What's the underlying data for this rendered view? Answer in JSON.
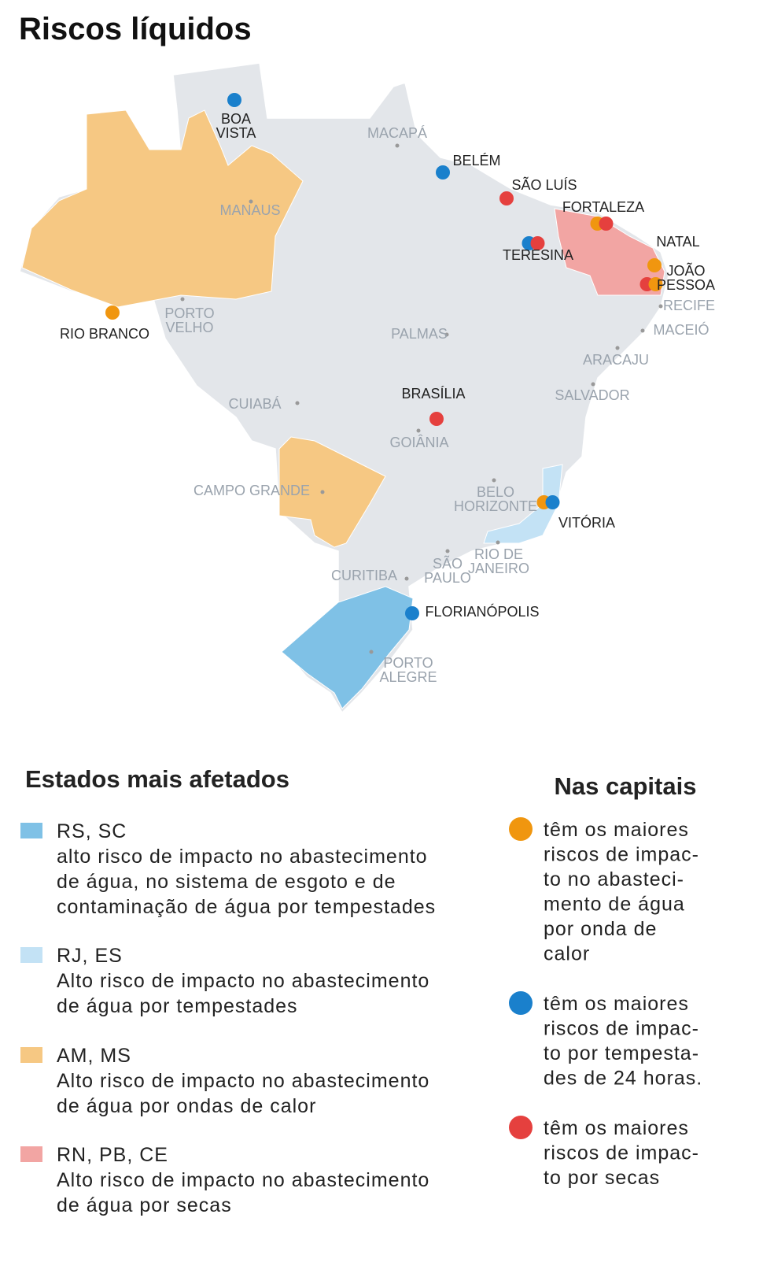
{
  "title": "Riscos líquidos",
  "cities": [
    {
      "lines": [
        "BOA",
        "VISTA"
      ],
      "affected": true,
      "dots": [
        "#1a80cc"
      ]
    },
    {
      "lines": [
        "MACAPÁ"
      ],
      "affected": false,
      "dots": []
    },
    {
      "lines": [
        "BELÉM"
      ],
      "affected": true,
      "dots": [
        "#1a80cc"
      ]
    },
    {
      "lines": [
        "SÃO LUÍS"
      ],
      "affected": true,
      "dots": [
        "#e5403e"
      ]
    },
    {
      "lines": [
        "FORTALEZA"
      ],
      "affected": true,
      "dots": [
        "#f0960f",
        "#e5403e"
      ]
    },
    {
      "lines": [
        "NATAL"
      ],
      "affected": true,
      "dots": [
        "#f0960f"
      ]
    },
    {
      "lines": [
        "TERESINA"
      ],
      "affected": true,
      "dots": [
        "#1a80cc",
        "#e5403e"
      ]
    },
    {
      "lines": [
        "JOÃO",
        "PESSOA"
      ],
      "affected": true,
      "dots": [
        "#e5403e",
        "#f0960f"
      ]
    },
    {
      "lines": [
        "MANAUS"
      ],
      "affected": false,
      "dots": []
    },
    {
      "lines": [
        "RECIFE"
      ],
      "affected": false,
      "dots": []
    },
    {
      "lines": [
        "MACEIÓ"
      ],
      "affected": false,
      "dots": []
    },
    {
      "lines": [
        "PORTO",
        "VELHO"
      ],
      "affected": false,
      "dots": []
    },
    {
      "lines": [
        "RIO BRANCO"
      ],
      "affected": true,
      "dots": [
        "#f0960f"
      ]
    },
    {
      "lines": [
        "PALMAS"
      ],
      "affected": false,
      "dots": []
    },
    {
      "lines": [
        "ARACAJU"
      ],
      "affected": false,
      "dots": []
    },
    {
      "lines": [
        "SALVADOR"
      ],
      "affected": false,
      "dots": []
    },
    {
      "lines": [
        "BRASÍLIA"
      ],
      "affected": true,
      "dots": [
        "#e5403e"
      ]
    },
    {
      "lines": [
        "CUIABÁ"
      ],
      "affected": false,
      "dots": []
    },
    {
      "lines": [
        "GOIÂNIA"
      ],
      "affected": false,
      "dots": []
    },
    {
      "lines": [
        "CAMPO GRANDE"
      ],
      "affected": false,
      "dots": []
    },
    {
      "lines": [
        "BELO",
        "HORIZONTE"
      ],
      "affected": false,
      "dots": []
    },
    {
      "lines": [
        "VITÓRIA"
      ],
      "affected": true,
      "dots": [
        "#f0960f",
        "#1a80cc"
      ]
    },
    {
      "lines": [
        "RIO DE",
        "JANEIRO"
      ],
      "affected": false,
      "dots": []
    },
    {
      "lines": [
        "SÃO",
        "PAULO"
      ],
      "affected": false,
      "dots": []
    },
    {
      "lines": [
        "CURITIBA"
      ],
      "affected": false,
      "dots": []
    },
    {
      "lines": [
        "FLORIANÓPOLIS"
      ],
      "affected": true,
      "dots": [
        "#1a80cc"
      ]
    },
    {
      "lines": [
        "PORTO",
        "ALEGRE"
      ],
      "affected": false,
      "dots": []
    }
  ],
  "states_legend": {
    "heading": "Estados mais afetados",
    "items": [
      {
        "color": "#7fc1e6",
        "states": "RS, SC",
        "lines": [
          "alto risco de impacto no abastecimento",
          "de água, no sistema de esgoto e de",
          "contaminação de água por tempestades"
        ]
      },
      {
        "color": "#c3e2f5",
        "states": "RJ, ES",
        "lines": [
          "Alto risco de impacto no abastecimento",
          "de água por tempestades"
        ]
      },
      {
        "color": "#f6c883",
        "states": "AM, MS",
        "lines": [
          "Alto risco de impacto no abastecimento",
          "de água por ondas de calor"
        ]
      },
      {
        "color": "#f2a5a3",
        "states": "RN, PB, CE",
        "lines": [
          "Alto risco de impacto no abastecimento",
          "de água por secas"
        ]
      }
    ]
  },
  "capitals_legend": {
    "heading": "Nas capitais",
    "items": [
      {
        "color": "#f0960f",
        "lines": [
          "têm os maiores",
          "riscos de impac-",
          "to no abasteci-",
          "mento de água",
          "por onda de",
          "calor"
        ]
      },
      {
        "color": "#1a80cc",
        "lines": [
          "têm os maiores",
          "riscos de impac-",
          "to por tempesta-",
          "des de 24 horas."
        ]
      },
      {
        "color": "#e5403e",
        "lines": [
          "têm os maiores",
          "riscos de impac-",
          "to por secas"
        ]
      }
    ]
  }
}
